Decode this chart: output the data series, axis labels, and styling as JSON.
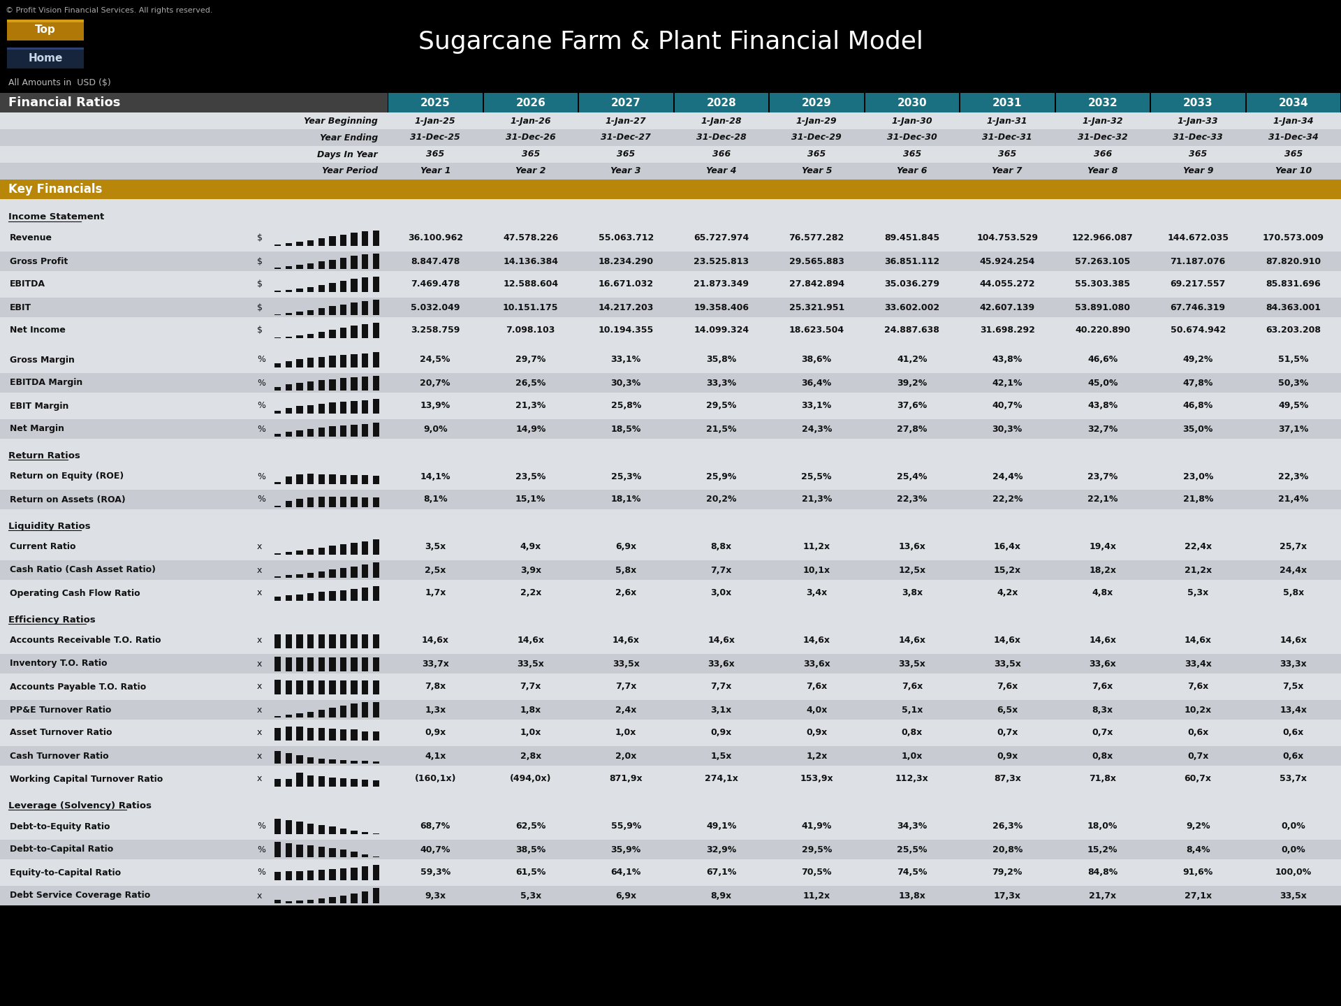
{
  "title": "Sugarcane Farm & Plant Financial Model",
  "copyright": "© Profit Vision Financial Services. All rights reserved.",
  "all_amounts": "All Amounts in  USD ($)",
  "bg_color": "#000000",
  "header_bg": "#1a7080",
  "section_bg": "#b8870a",
  "years": [
    "2025",
    "2026",
    "2027",
    "2028",
    "2029",
    "2030",
    "2031",
    "2032",
    "2033",
    "2034"
  ],
  "year_beginning": [
    "1-Jan-25",
    "1-Jan-26",
    "1-Jan-27",
    "1-Jan-28",
    "1-Jan-29",
    "1-Jan-30",
    "1-Jan-31",
    "1-Jan-32",
    "1-Jan-33",
    "1-Jan-34"
  ],
  "year_ending": [
    "31-Dec-25",
    "31-Dec-26",
    "31-Dec-27",
    "31-Dec-28",
    "31-Dec-29",
    "31-Dec-30",
    "31-Dec-31",
    "31-Dec-32",
    "31-Dec-33",
    "31-Dec-34"
  ],
  "days_in_year": [
    "365",
    "365",
    "365",
    "366",
    "365",
    "365",
    "365",
    "366",
    "365",
    "365"
  ],
  "year_period": [
    "Year 1",
    "Year 2",
    "Year 3",
    "Year 4",
    "Year 5",
    "Year 6",
    "Year 7",
    "Year 8",
    "Year 9",
    "Year 10"
  ],
  "income_statement": {
    "Revenue": [
      "36.100.962",
      "47.578.226",
      "55.063.712",
      "65.727.974",
      "76.577.282",
      "89.451.845",
      "104.753.529",
      "122.966.087",
      "144.672.035",
      "170.573.009"
    ],
    "Gross Profit": [
      "8.847.478",
      "14.136.384",
      "18.234.290",
      "23.525.813",
      "29.565.883",
      "36.851.112",
      "45.924.254",
      "57.263.105",
      "71.187.076",
      "87.820.910"
    ],
    "EBITDA": [
      "7.469.478",
      "12.588.604",
      "16.671.032",
      "21.873.349",
      "27.842.894",
      "35.036.279",
      "44.055.272",
      "55.303.385",
      "69.217.557",
      "85.831.696"
    ],
    "EBIT": [
      "5.032.049",
      "10.151.175",
      "14.217.203",
      "19.358.406",
      "25.321.951",
      "33.602.002",
      "42.607.139",
      "53.891.080",
      "67.746.319",
      "84.363.001"
    ],
    "Net Income": [
      "3.258.759",
      "7.098.103",
      "10.194.355",
      "14.099.324",
      "18.623.504",
      "24.887.638",
      "31.698.292",
      "40.220.890",
      "50.674.942",
      "63.203.208"
    ]
  },
  "margins": {
    "Gross Margin": [
      "24,5%",
      "29,7%",
      "33,1%",
      "35,8%",
      "38,6%",
      "41,2%",
      "43,8%",
      "46,6%",
      "49,2%",
      "51,5%"
    ],
    "EBITDA Margin": [
      "20,7%",
      "26,5%",
      "30,3%",
      "33,3%",
      "36,4%",
      "39,2%",
      "42,1%",
      "45,0%",
      "47,8%",
      "50,3%"
    ],
    "EBIT Margin": [
      "13,9%",
      "21,3%",
      "25,8%",
      "29,5%",
      "33,1%",
      "37,6%",
      "40,7%",
      "43,8%",
      "46,8%",
      "49,5%"
    ],
    "Net Margin": [
      "9,0%",
      "14,9%",
      "18,5%",
      "21,5%",
      "24,3%",
      "27,8%",
      "30,3%",
      "32,7%",
      "35,0%",
      "37,1%"
    ]
  },
  "return_ratios": {
    "Return on Equity (ROE)": [
      "14,1%",
      "23,5%",
      "25,3%",
      "25,9%",
      "25,5%",
      "25,4%",
      "24,4%",
      "23,7%",
      "23,0%",
      "22,3%"
    ],
    "Return on Assets (ROA)": [
      "8,1%",
      "15,1%",
      "18,1%",
      "20,2%",
      "21,3%",
      "22,3%",
      "22,2%",
      "22,1%",
      "21,8%",
      "21,4%"
    ]
  },
  "liquidity_ratios": {
    "Current Ratio": [
      "3,5x",
      "4,9x",
      "6,9x",
      "8,8x",
      "11,2x",
      "13,6x",
      "16,4x",
      "19,4x",
      "22,4x",
      "25,7x"
    ],
    "Cash Ratio (Cash Asset Ratio)": [
      "2,5x",
      "3,9x",
      "5,8x",
      "7,7x",
      "10,1x",
      "12,5x",
      "15,2x",
      "18,2x",
      "21,2x",
      "24,4x"
    ],
    "Operating Cash Flow Ratio": [
      "1,7x",
      "2,2x",
      "2,6x",
      "3,0x",
      "3,4x",
      "3,8x",
      "4,2x",
      "4,8x",
      "5,3x",
      "5,8x"
    ]
  },
  "efficiency_ratios": {
    "Accounts Receivable T.O. Ratio": [
      "14,6x",
      "14,6x",
      "14,6x",
      "14,6x",
      "14,6x",
      "14,6x",
      "14,6x",
      "14,6x",
      "14,6x",
      "14,6x"
    ],
    "Inventory T.O. Ratio": [
      "33,7x",
      "33,5x",
      "33,5x",
      "33,6x",
      "33,6x",
      "33,5x",
      "33,5x",
      "33,6x",
      "33,4x",
      "33,3x"
    ],
    "Accounts Payable T.O. Ratio": [
      "7,8x",
      "7,7x",
      "7,7x",
      "7,7x",
      "7,6x",
      "7,6x",
      "7,6x",
      "7,6x",
      "7,6x",
      "7,5x"
    ],
    "PP&E Turnover Ratio": [
      "1,3x",
      "1,8x",
      "2,4x",
      "3,1x",
      "4,0x",
      "5,1x",
      "6,5x",
      "8,3x",
      "10,2x",
      "13,4x"
    ],
    "Asset Turnover Ratio": [
      "0,9x",
      "1,0x",
      "1,0x",
      "0,9x",
      "0,9x",
      "0,8x",
      "0,7x",
      "0,7x",
      "0,6x",
      "0,6x"
    ],
    "Cash Turnover Ratio": [
      "4,1x",
      "2,8x",
      "2,0x",
      "1,5x",
      "1,2x",
      "1,0x",
      "0,9x",
      "0,8x",
      "0,7x",
      "0,6x"
    ],
    "Working Capital Turnover Ratio": [
      "(160,1x)",
      "(494,0x)",
      "871,9x",
      "274,1x",
      "153,9x",
      "112,3x",
      "87,3x",
      "71,8x",
      "60,7x",
      "53,7x"
    ]
  },
  "leverage_ratios": {
    "Debt-to-Equity Ratio": [
      "68,7%",
      "62,5%",
      "55,9%",
      "49,1%",
      "41,9%",
      "34,3%",
      "26,3%",
      "18,0%",
      "9,2%",
      "0,0%"
    ],
    "Debt-to-Capital Ratio": [
      "40,7%",
      "38,5%",
      "35,9%",
      "32,9%",
      "29,5%",
      "25,5%",
      "20,8%",
      "15,2%",
      "8,4%",
      "0,0%"
    ],
    "Equity-to-Capital Ratio": [
      "59,3%",
      "61,5%",
      "64,1%",
      "67,1%",
      "70,5%",
      "74,5%",
      "79,2%",
      "84,8%",
      "91,6%",
      "100,0%"
    ],
    "Debt Service Coverage Ratio": [
      "9,3x",
      "5,3x",
      "6,9x",
      "8,9x",
      "11,2x",
      "13,8x",
      "17,3x",
      "21,7x",
      "27,1x",
      "33,5x"
    ]
  }
}
